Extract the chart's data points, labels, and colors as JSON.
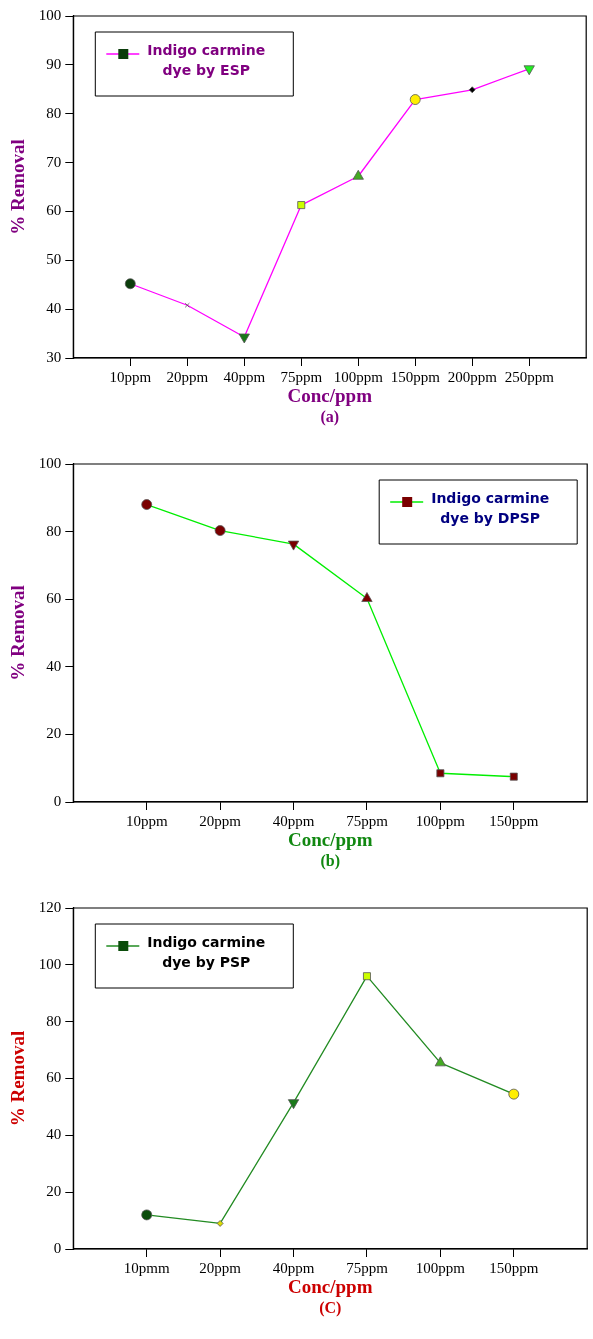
{
  "chart_data": [
    {
      "type": "line",
      "xlabel": "Conc/ppm",
      "ylabel": "% Removal",
      "annotations": [
        "(a)"
      ],
      "categories": [
        "10ppm",
        "20ppm",
        "40ppm",
        "75ppm",
        "100ppm",
        "150ppm",
        "200ppm",
        "250ppm"
      ],
      "series": [
        {
          "name": "Indigo carmine dye by ESP",
          "color": "#ff00ff",
          "values": [
            45.2,
            40.8,
            34.3,
            61.3,
            67.2,
            82.9,
            84.9,
            89.2
          ],
          "colors": [
            "#0b3d0b",
            "#c0c0c0",
            "#1a7a1a",
            "#ccff00",
            "#44aa22",
            "#ffee00",
            "#000000",
            "#22ee22"
          ]
        }
      ],
      "marker": [
        "circle",
        "cross",
        "triangle-down",
        "square",
        "triangle",
        "circle",
        "diamond",
        "triangle-down"
      ],
      "ylim": [
        30,
        100
      ],
      "yticks": [
        30,
        40,
        50,
        60,
        70,
        80,
        90,
        100
      ],
      "legend": "top left"
    },
    {
      "type": "line",
      "xlabel": "Conc/ppm",
      "ylabel": "% Removal",
      "annotations": [
        "(b)"
      ],
      "categories": [
        "10ppm",
        "20ppm",
        "40ppm",
        "75ppm",
        "100ppm",
        "150ppm"
      ],
      "series": [
        {
          "name": "Indigo carmine dye by DPSP",
          "color": "#00ee00",
          "values": [
            88,
            80.3,
            76.3,
            60.2,
            8.5,
            7.5
          ],
          "colors": [
            "#7a0000",
            "#7a0000",
            "#7a0000",
            "#7a0000",
            "#7a0000",
            "#7a0000"
          ]
        }
      ],
      "marker": [
        "circle",
        "circle",
        "triangle-down",
        "triangle",
        "square",
        "square"
      ],
      "ylim": [
        0,
        100
      ],
      "yticks": [
        0,
        20,
        40,
        60,
        80,
        100
      ],
      "legend": "top right"
    },
    {
      "type": "line",
      "xlabel": "Conc/ppm",
      "ylabel": "% Removal",
      "annotations": [
        "(C)"
      ],
      "categories": [
        "10pmm",
        "20ppm",
        "40ppm",
        "75ppm",
        "100ppm",
        "150ppm"
      ],
      "series": [
        {
          "name": "Indigo carmine dye by PSP",
          "color": "#228b22",
          "values": [
            12,
            9,
            51.5,
            96,
            65.5,
            54.5
          ],
          "colors": [
            "#0b4d0b",
            "#dddd00",
            "#1a7a1a",
            "#ccff00",
            "#44aa22",
            "#ffee00"
          ]
        }
      ],
      "marker": [
        "circle",
        "diamond",
        "triangle-down",
        "square",
        "triangle",
        "circle"
      ],
      "ylim": [
        0,
        120
      ],
      "yticks": [
        0,
        20,
        40,
        60,
        80,
        100,
        120
      ],
      "legend": "top left"
    }
  ]
}
